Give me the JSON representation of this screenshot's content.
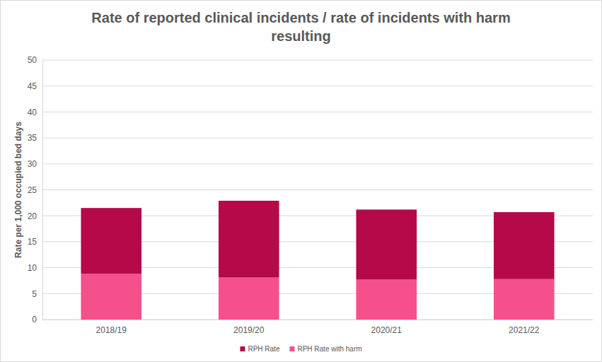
{
  "chart_data": {
    "type": "bar",
    "stacked": true,
    "title": "Rate of reported clinical incidents / rate of incidents with harm resulting",
    "y_label": "Rate per 1,000 occupied bed days",
    "categories": [
      "2018/19",
      "2019/20",
      "2020/21",
      "2021/22"
    ],
    "series": [
      {
        "name": "RPH Rate",
        "color": "#b5094a",
        "values": [
          12.7,
          14.8,
          13.5,
          12.9
        ]
      },
      {
        "name": "RPH Rate with harm",
        "color": "#f5508b",
        "values": [
          8.8,
          8.1,
          7.7,
          7.8
        ]
      }
    ],
    "ylim": [
      0,
      50
    ],
    "yticks": [
      0,
      5,
      10,
      15,
      20,
      25,
      30,
      35,
      40,
      45,
      50
    ],
    "grid": true,
    "legend": "bottom"
  }
}
